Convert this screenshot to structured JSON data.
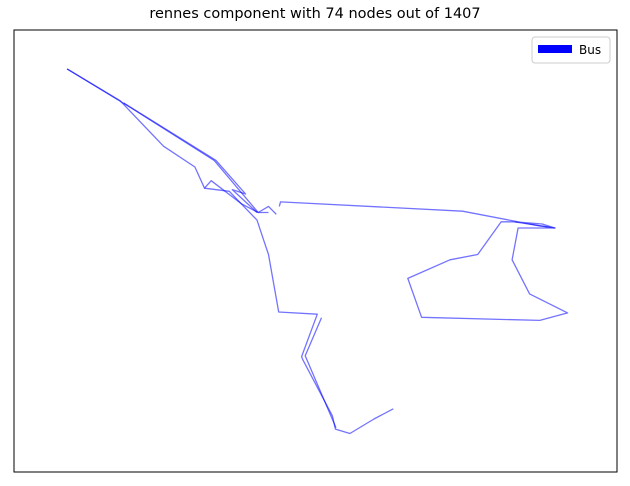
{
  "title": "rennes component with 74 nodes out of 1407",
  "legend": {
    "label": "Bus",
    "color": "#0000ff"
  },
  "colors": {
    "line": "#0000ff",
    "frame": "#000000"
  },
  "chart_data": {
    "type": "line",
    "title": "rennes component with 74 nodes out of 1407",
    "legend_placement": "top-right",
    "grid": false,
    "xlim": [
      0,
      100
    ],
    "ylim": [
      0,
      100
    ],
    "series": [
      {
        "name": "Bus",
        "segments": [
          [
            [
              8.8,
              91.2
            ],
            [
              17.6,
              84.0
            ],
            [
              24.8,
              73.7
            ],
            [
              30.0,
              69.0
            ],
            [
              31.6,
              64.2
            ],
            [
              32.7,
              65.9
            ],
            [
              37.8,
              60.6
            ],
            [
              40.5,
              58.7
            ],
            [
              42.2,
              58.7
            ]
          ],
          [
            [
              8.8,
              91.2
            ],
            [
              18.9,
              82.8
            ],
            [
              33.2,
              70.5
            ],
            [
              40.5,
              58.7
            ],
            [
              42.2,
              60.1
            ],
            [
              43.5,
              58.3
            ]
          ],
          [
            [
              31.6,
              64.2
            ],
            [
              35.7,
              63.5
            ],
            [
              40.3,
              57.0
            ],
            [
              41.4,
              52.5
            ],
            [
              42.2,
              49.2
            ],
            [
              43.9,
              36.2
            ],
            [
              50.3,
              35.7
            ],
            [
              47.7,
              26.1
            ],
            [
              47.9,
              25.4
            ],
            [
              52.8,
              12.7
            ],
            [
              53.3,
              9.7
            ],
            [
              55.7,
              8.7
            ],
            [
              59.7,
              12.0
            ],
            [
              62.9,
              14.3
            ]
          ],
          [
            [
              44.0,
              60.1
            ],
            [
              44.2,
              61.1
            ],
            [
              74.4,
              59.0
            ],
            [
              87.1,
              55.7
            ],
            [
              89.7,
              55.2
            ],
            [
              87.6,
              56.1
            ],
            [
              83.0,
              56.6
            ]
          ],
          [
            [
              40.3,
              58.7
            ],
            [
              36.2,
              63.9
            ],
            [
              38.4,
              62.9
            ],
            [
              33.5,
              70.5
            ],
            [
              18.2,
              83.5
            ]
          ],
          [
            [
              83.0,
              56.6
            ],
            [
              89.7,
              55.2
            ],
            [
              83.6,
              55.2
            ],
            [
              82.6,
              48.0
            ],
            [
              85.5,
              40.3
            ],
            [
              91.8,
              36.0
            ],
            [
              87.2,
              34.3
            ],
            [
              67.6,
              35.0
            ],
            [
              65.3,
              43.8
            ],
            [
              72.3,
              48.0
            ],
            [
              76.9,
              49.2
            ],
            [
              80.8,
              56.6
            ],
            [
              83.0,
              56.6
            ]
          ],
          [
            [
              53.4,
              10.0
            ],
            [
              48.3,
              26.3
            ],
            [
              51.0,
              34.9
            ]
          ]
        ]
      }
    ]
  }
}
